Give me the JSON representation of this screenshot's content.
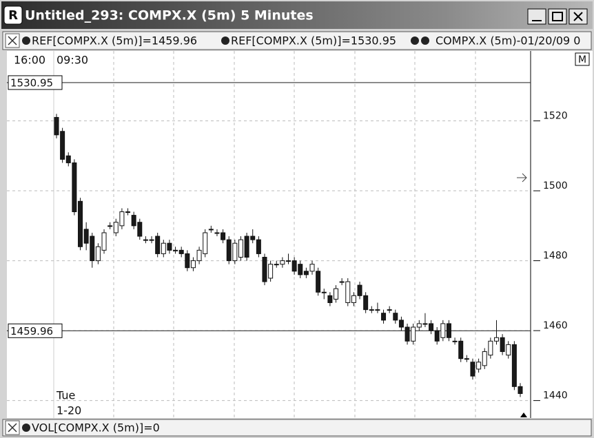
{
  "window": {
    "title": "Untitled_293: COMPX.X (5m) 5 Minutes",
    "legend": [
      "REF[COMPX.X (5m)]=1459.96",
      "REF[COMPX.X (5m)]=1530.95",
      "COMPX.X (5m)-01/20/09 0"
    ],
    "time_labels": [
      "16:00",
      "09:30"
    ],
    "date_labels": [
      "Tue",
      "1-20"
    ],
    "button": "M",
    "volume_legend": "VOL[COMPX.X (5m)]=0"
  },
  "chart_data": {
    "type": "candlestick",
    "open": [
      1521,
      1517,
      1510,
      1508,
      1497,
      1489,
      1487,
      1480,
      1483,
      1490,
      1488,
      1490,
      1494,
      1493,
      1491,
      1486,
      1486,
      1487,
      1482,
      1485,
      1483,
      1483,
      1482,
      1478,
      1480,
      1482,
      1489,
      1488,
      1488,
      1486,
      1480,
      1481,
      1487,
      1487,
      1486,
      1481,
      1475,
      1479,
      1479,
      1480,
      1480,
      1479,
      1477,
      1477,
      1477,
      1471,
      1470,
      1469,
      1474,
      1468,
      1468,
      1473,
      1470,
      1466,
      1466,
      1465,
      1466,
      1465,
      1463,
      1461,
      1457,
      1461,
      1462,
      1462,
      1460,
      1458,
      1462,
      1457,
      1457,
      1452,
      1451,
      1449,
      1450,
      1453,
      1457,
      1458,
      1453,
      1456,
      1444
    ],
    "high": [
      1522,
      1518,
      1511,
      1509,
      1498,
      1491,
      1488,
      1485,
      1489,
      1491,
      1492,
      1495,
      1495,
      1494,
      1492,
      1487,
      1487,
      1488,
      1486,
      1486,
      1484,
      1484,
      1483,
      1481,
      1484,
      1489,
      1490,
      1489,
      1489,
      1487,
      1486,
      1487,
      1488,
      1489,
      1487,
      1482,
      1480,
      1480,
      1481,
      1482,
      1481,
      1480,
      1478,
      1480,
      1478,
      1472,
      1471,
      1473,
      1475,
      1475,
      1471,
      1474,
      1471,
      1467,
      1468,
      1466,
      1467,
      1466,
      1464,
      1462,
      1462,
      1463,
      1465,
      1463,
      1461,
      1463,
      1463,
      1458,
      1458,
      1453,
      1452,
      1452,
      1455,
      1458,
      1463,
      1459,
      1457,
      1457,
      1445
    ],
    "low": [
      1515,
      1508,
      1507,
      1493,
      1483,
      1483,
      1478,
      1479,
      1482,
      1489,
      1487,
      1489,
      1493,
      1489,
      1486,
      1485,
      1485,
      1481,
      1481,
      1482,
      1482,
      1481,
      1477,
      1477,
      1479,
      1481,
      1488,
      1487,
      1485,
      1479,
      1479,
      1480,
      1480,
      1485,
      1481,
      1473,
      1474,
      1478,
      1478,
      1479,
      1476,
      1475,
      1475,
      1476,
      1470,
      1469,
      1467,
      1468,
      1473,
      1467,
      1467,
      1469,
      1465,
      1465,
      1465,
      1462,
      1465,
      1462,
      1460,
      1456,
      1456,
      1460,
      1461,
      1459,
      1456,
      1457,
      1457,
      1456,
      1451,
      1451,
      1446,
      1448,
      1449,
      1452,
      1456,
      1453,
      1452,
      1443,
      1441
    ],
    "close": [
      1516,
      1509,
      1508,
      1494,
      1484,
      1485,
      1480,
      1484,
      1488,
      1490,
      1491,
      1494,
      1494,
      1490,
      1487,
      1486,
      1486,
      1482,
      1485,
      1483,
      1483,
      1482,
      1478,
      1480,
      1483,
      1488,
      1489,
      1488,
      1486,
      1480,
      1485,
      1486,
      1481,
      1486,
      1482,
      1474,
      1479,
      1479,
      1480,
      1480,
      1477,
      1476,
      1476,
      1479,
      1471,
      1471,
      1468,
      1472,
      1474,
      1474,
      1470,
      1470,
      1466,
      1466,
      1466,
      1463,
      1466,
      1463,
      1461,
      1457,
      1461,
      1462,
      1462,
      1460,
      1457,
      1462,
      1458,
      1457,
      1452,
      1452,
      1447,
      1451,
      1454,
      1457,
      1458,
      1454,
      1456,
      1444,
      1442
    ],
    "reference_lines": [
      1530.95,
      1459.96
    ],
    "ylim": [
      1435,
      1540
    ],
    "yticks": [
      1440,
      1460,
      1480,
      1500,
      1520
    ],
    "grid": true,
    "up_color": "#ffffff",
    "down_color": "#1a1a1a"
  }
}
